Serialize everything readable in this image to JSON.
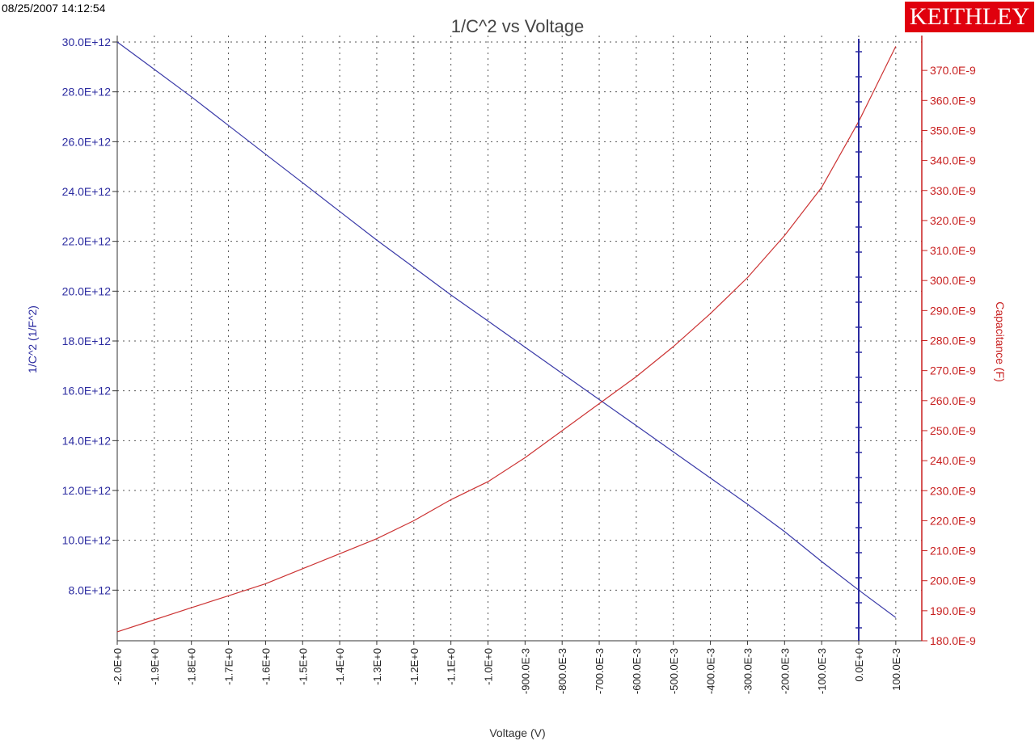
{
  "header": {
    "timestamp": "08/25/2007 14:12:54",
    "logo_text": "KEITHLEY"
  },
  "colors": {
    "left_axis": "#2b2ba0",
    "right_axis": "#c81e1e",
    "series_inv_c2": "#3a3aa8",
    "series_capacitance": "#cc3333",
    "grid": "#555555",
    "logo_bg": "#e0000d"
  },
  "chart_data": {
    "type": "line",
    "title": "1/C^2 vs Voltage",
    "xlabel": "Voltage (V)",
    "ylabel_left": "1/C^2 (1/F^2)",
    "ylabel_right": "Capacitance (F)",
    "grid": true,
    "xlim": [
      -2.0,
      0.1
    ],
    "ylim_left": [
      6000000000000.0,
      30000000000000.0
    ],
    "ylim_right": [
      1.8e-07,
      3.8e-07
    ],
    "x_ticks": [
      -2.0,
      -1.9,
      -1.8,
      -1.7,
      -1.6,
      -1.5,
      -1.4,
      -1.3,
      -1.2,
      -1.1,
      -1.0,
      -0.9,
      -0.8,
      -0.7,
      -0.6,
      -0.5,
      -0.4,
      -0.3,
      -0.2,
      -0.1,
      0.0,
      0.1
    ],
    "x_tick_labels": [
      "-2.0E+0",
      "-1.9E+0",
      "-1.8E+0",
      "-1.7E+0",
      "-1.6E+0",
      "-1.5E+0",
      "-1.4E+0",
      "-1.3E+0",
      "-1.2E+0",
      "-1.1E+0",
      "-1.0E+0",
      "-900.0E-3",
      "-800.0E-3",
      "-700.0E-3",
      "-600.0E-3",
      "-500.0E-3",
      "-400.0E-3",
      "-300.0E-3",
      "-200.0E-3",
      "-100.0E-3",
      "0.0E+0",
      "100.0E-3"
    ],
    "y_left_ticks": [
      8000000000000.0,
      10000000000000.0,
      12000000000000.0,
      14000000000000.0,
      16000000000000.0,
      18000000000000.0,
      20000000000000.0,
      22000000000000.0,
      24000000000000.0,
      26000000000000.0,
      28000000000000.0,
      30000000000000.0
    ],
    "y_left_tick_labels": [
      "8.0E+12",
      "10.0E+12",
      "12.0E+12",
      "14.0E+12",
      "16.0E+12",
      "18.0E+12",
      "20.0E+12",
      "22.0E+12",
      "24.0E+12",
      "26.0E+12",
      "28.0E+12",
      "30.0E+12"
    ],
    "y_right_ticks": [
      1.8e-07,
      1.9e-07,
      2e-07,
      2.1e-07,
      2.2e-07,
      2.3e-07,
      2.4e-07,
      2.5e-07,
      2.6e-07,
      2.7e-07,
      2.8e-07,
      2.9e-07,
      3e-07,
      3.1e-07,
      3.2e-07,
      3.3e-07,
      3.4e-07,
      3.5e-07,
      3.6e-07,
      3.7e-07
    ],
    "y_right_tick_labels": [
      "180.0E-9",
      "190.0E-9",
      "200.0E-9",
      "210.0E-9",
      "220.0E-9",
      "230.0E-9",
      "240.0E-9",
      "250.0E-9",
      "260.0E-9",
      "270.0E-9",
      "280.0E-9",
      "290.0E-9",
      "300.0E-9",
      "310.0E-9",
      "320.0E-9",
      "330.0E-9",
      "340.0E-9",
      "350.0E-9",
      "360.0E-9",
      "370.0E-9"
    ],
    "series": [
      {
        "axis": "left",
        "x": [
          -2.0,
          -1.9,
          -1.8,
          -1.7,
          -1.6,
          -1.5,
          -1.4,
          -1.3,
          -1.2,
          -1.1,
          -1.0,
          -0.9,
          -0.8,
          -0.7,
          -0.6,
          -0.5,
          -0.4,
          -0.3,
          -0.2,
          -0.1,
          0.0,
          0.1
        ],
        "values": [
          30000000000000.0,
          28900000000000.0,
          27800000000000.0,
          26650000000000.0,
          25500000000000.0,
          24350000000000.0,
          23200000000000.0,
          22050000000000.0,
          20950000000000.0,
          19850000000000.0,
          18800000000000.0,
          17750000000000.0,
          16700000000000.0,
          15650000000000.0,
          14600000000000.0,
          13550000000000.0,
          12500000000000.0,
          11450000000000.0,
          10350000000000.0,
          9150000000000.0,
          8000000000000.0,
          6900000000000.0
        ]
      },
      {
        "axis": "right",
        "x": [
          -2.0,
          -1.9,
          -1.8,
          -1.7,
          -1.6,
          -1.5,
          -1.4,
          -1.3,
          -1.2,
          -1.1,
          -1.0,
          -0.9,
          -0.8,
          -0.7,
          -0.6,
          -0.5,
          -0.4,
          -0.3,
          -0.2,
          -0.1,
          0.0,
          0.1
        ],
        "values": [
          1.83e-07,
          1.87e-07,
          1.91e-07,
          1.95e-07,
          1.99e-07,
          2.04e-07,
          2.09e-07,
          2.14e-07,
          2.2e-07,
          2.27e-07,
          2.33e-07,
          2.41e-07,
          2.5e-07,
          2.59e-07,
          2.68e-07,
          2.78e-07,
          2.89e-07,
          3.01e-07,
          3.15e-07,
          3.31e-07,
          3.53e-07,
          3.78e-07
        ]
      }
    ],
    "marker_line_x": 0.0
  }
}
